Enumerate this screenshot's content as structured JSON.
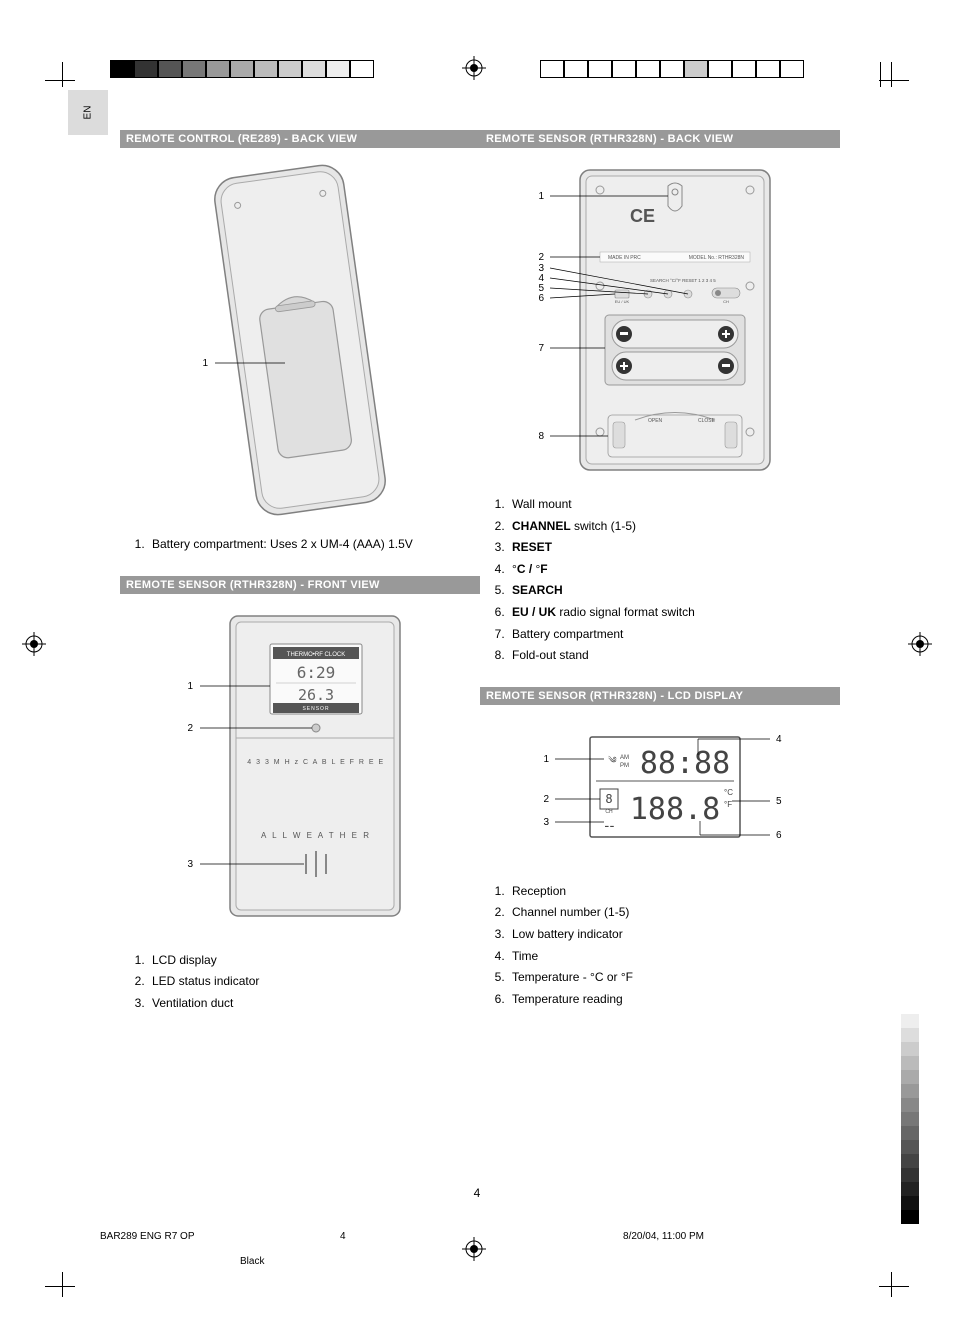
{
  "lang": "EN",
  "page_number": "4",
  "footer": {
    "doc_id": "BAR289 ENG R7 OP",
    "sheet": "4",
    "datetime": "8/20/04, 11:00 PM",
    "color": "Black"
  },
  "sections": [
    {
      "id": "remote-control-back",
      "title": "REMOTE CONTROL (RE289) - BACK VIEW",
      "callouts_left": [
        "1"
      ],
      "items": [
        {
          "text": "Battery compartment: Uses 2 x UM-4 (AAA) 1.5V"
        }
      ]
    },
    {
      "id": "sensor-front",
      "title": "REMOTE SENSOR (RTHR328N) - FRONT VIEW",
      "callouts_left": [
        "1",
        "2",
        "3"
      ],
      "lcd_line1": "THERMO•RF CLOCK",
      "lcd_time": "6:29",
      "lcd_temp": "26.3",
      "lcd_label": "SENSOR",
      "band_text": "4 3 3 M H z   C A B L E   F R E E",
      "brand_text": "A L L   W E A T H E R",
      "items": [
        {
          "text": "LCD display"
        },
        {
          "text": "LED status indicator"
        },
        {
          "text": "Ventilation duct"
        }
      ]
    },
    {
      "id": "sensor-back",
      "title": "REMOTE SENSOR (RTHR328N) - BACK VIEW",
      "callouts_left": [
        "1",
        "2",
        "3",
        "4",
        "5",
        "6",
        "7",
        "8"
      ],
      "made_in": "MADE IN PRC",
      "model_label": "MODEL No.: RTHR328N",
      "items": [
        {
          "text": "Wall mount"
        },
        {
          "html": "<span class='b'>CHANNEL</span> switch (1-5)"
        },
        {
          "html": "<span class='b'>RESET</span>"
        },
        {
          "html": "°<span class='b'>C / </span>°<span class='b'>F</span>"
        },
        {
          "html": "<span class='b'>SEARCH</span>"
        },
        {
          "html": "<span class='b'>EU / UK</span> radio signal format switch"
        },
        {
          "text": "Battery compartment"
        },
        {
          "text": "Fold-out stand"
        }
      ]
    },
    {
      "id": "sensor-lcd",
      "title": "REMOTE SENSOR (RTHR328N) - LCD DISPLAY",
      "callouts_left": [
        "1",
        "2",
        "3"
      ],
      "callouts_right": [
        "4",
        "5",
        "6"
      ],
      "items": [
        {
          "text": "Reception"
        },
        {
          "text": "Channel number (1-5)"
        },
        {
          "text": "Low battery indicator"
        },
        {
          "text": "Time"
        },
        {
          "text": "Temperature - °C or °F"
        },
        {
          "text": "Temperature reading"
        }
      ]
    }
  ],
  "colors": {
    "header_bg": "#999999",
    "header_fg": "#ffffff",
    "diagram_stroke": "#808080",
    "diagram_fill": "#e6e6e6",
    "lang_tab_bg": "#dcdcdc"
  },
  "top_colorbar_left": [
    "#000000",
    "#333333",
    "#555555",
    "#777777",
    "#999999",
    "#aaaaaa",
    "#bbbbbb",
    "#cccccc",
    "#dddddd",
    "#eeeeee",
    "#ffffff"
  ],
  "top_colorbar_right": [
    "#ffffff",
    "#ffffff",
    "#ffffff",
    "#ffffff",
    "#ffffff",
    "#ffffff",
    "#cccccc",
    "#ffffff",
    "#ffffff",
    "#ffffff",
    "#ffffff"
  ],
  "side_colorbar": [
    "#ffffff",
    "#eeeeee",
    "#dddddd",
    "#cccccc",
    "#bbbbbb",
    "#aaaaaa",
    "#999999",
    "#888888",
    "#777777",
    "#666666",
    "#555555",
    "#444444",
    "#333333",
    "#222222",
    "#111111",
    "#000000"
  ]
}
